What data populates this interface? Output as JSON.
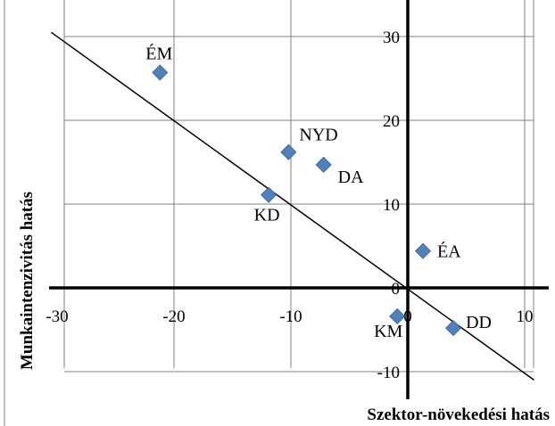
{
  "chart_data": {
    "type": "scatter",
    "title": "",
    "xlabel": "Szektor-növekedési hatás",
    "ylabel": "Munkaintenzivitás hatás",
    "xlim": [
      -30,
      10
    ],
    "ylim": [
      -13,
      31
    ],
    "xticks": [
      -30,
      -20,
      -10,
      0,
      10
    ],
    "xtick_labels": [
      "-30",
      "-20",
      "-10",
      "0",
      "10"
    ],
    "yticks": [
      -10,
      0,
      10,
      20,
      30
    ],
    "ytick_labels": [
      "-10",
      "0",
      "10",
      "20",
      "30"
    ],
    "grid": true,
    "legend": "none",
    "marker_color": "#4F81BD",
    "points": [
      {
        "label": "ÉM",
        "x": -21.2,
        "y": 25.7
      },
      {
        "label": "NYD",
        "x": -10.2,
        "y": 16.2
      },
      {
        "label": "DA",
        "x": -7.2,
        "y": 14.7
      },
      {
        "label": "KD",
        "x": -11.9,
        "y": 11.1
      },
      {
        "label": "ÉA",
        "x": 1.3,
        "y": 4.4
      },
      {
        "label": "KM",
        "x": -0.9,
        "y": -3.4
      },
      {
        "label": "DD",
        "x": 3.9,
        "y": -4.8
      }
    ],
    "trendline": {
      "x1": -30.5,
      "y1": 30.5,
      "x2": 10.8,
      "y2": -11
    }
  }
}
